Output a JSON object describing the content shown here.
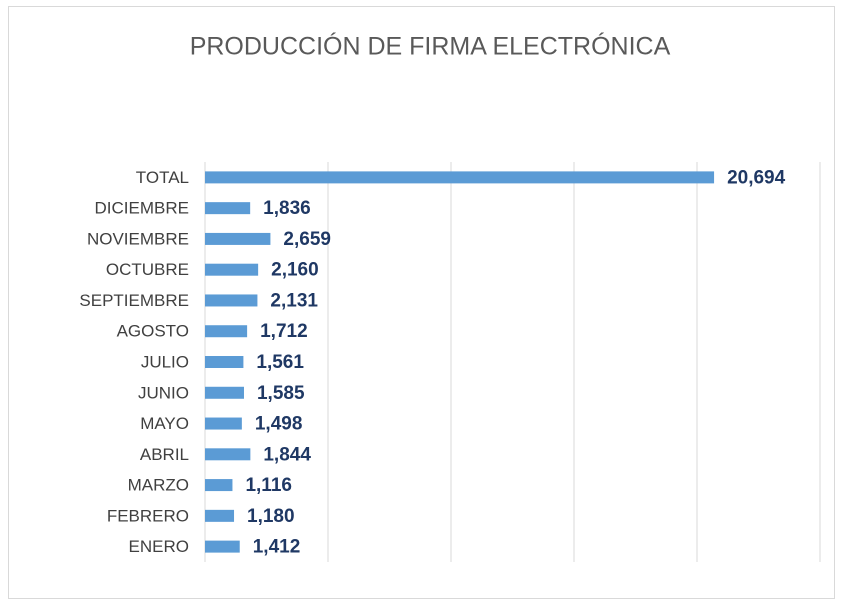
{
  "chart_data": {
    "type": "bar",
    "orientation": "horizontal",
    "title": "PRODUCCIÓN DE FIRMA ELECTRÓNICA",
    "categories": [
      "TOTAL",
      "DICIEMBRE",
      "NOVIEMBRE",
      "OCTUBRE",
      "SEPTIEMBRE",
      "AGOSTO",
      "JULIO",
      "JUNIO",
      "MAYO",
      "ABRIL",
      "MARZO",
      "FEBRERO",
      "ENERO"
    ],
    "values": [
      20694,
      1836,
      2659,
      2160,
      2131,
      1712,
      1561,
      1585,
      1498,
      1844,
      1116,
      1180,
      1412
    ],
    "value_labels": [
      "20,694",
      "1,836",
      "2,659",
      "2,160",
      "2,131",
      "1,712",
      "1,561",
      "1,585",
      "1,498",
      "1,844",
      "1,116",
      "1,180",
      "1,412"
    ],
    "color": "#5b9bd5",
    "xlim": [
      0,
      25000
    ],
    "xticks": [
      0,
      5000,
      10000,
      15000,
      20000,
      25000
    ],
    "grid": true
  }
}
